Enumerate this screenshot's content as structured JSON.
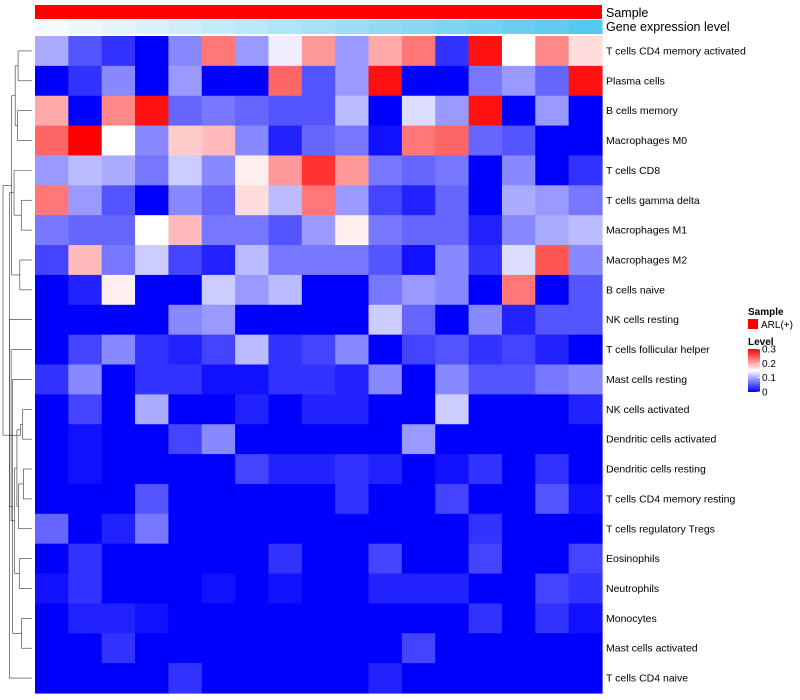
{
  "chart_data": {
    "type": "heatmap",
    "title": "",
    "top_tracks": [
      {
        "label": "Sample",
        "color": "#ff0000"
      },
      {
        "label": "Gene expression level",
        "gradient": [
          "#f7fbfd",
          "#55c8f0"
        ]
      }
    ],
    "rows": [
      "T cells CD4 memory activated",
      "Plasma cells",
      "B cells memory",
      "Macrophages M0",
      "T cells CD8",
      "T cells gamma delta",
      "Macrophages M1",
      "Macrophages M2",
      "B cells naive",
      "NK cells resting",
      "T cells follicular helper",
      "Mast cells resting",
      "NK cells activated",
      "Dendritic cells activated",
      "Dendritic cells resting",
      "T cells CD4 memory resting",
      "T cells regulatory  Tregs",
      "Eosinophils",
      "Neutrophils",
      "Monocytes",
      "Mast cells activated",
      "T cells CD4 naive"
    ],
    "n_samples": 17,
    "values": [
      [
        0.1,
        0.05,
        0.03,
        0.0,
        0.08,
        0.23,
        0.09,
        0.14,
        0.21,
        0.09,
        0.2,
        0.23,
        0.03,
        0.29,
        0.15,
        0.22,
        0.17
      ],
      [
        0.0,
        0.03,
        0.08,
        0.0,
        0.09,
        0.0,
        0.0,
        0.24,
        0.05,
        0.09,
        0.29,
        0.0,
        0.0,
        0.07,
        0.09,
        0.06,
        0.29
      ],
      [
        0.2,
        0.0,
        0.22,
        0.29,
        0.06,
        0.07,
        0.06,
        0.05,
        0.05,
        0.11,
        0.0,
        0.13,
        0.09,
        0.29,
        0.0,
        0.09,
        0.0
      ],
      [
        0.24,
        0.3,
        0.15,
        0.08,
        0.18,
        0.19,
        0.08,
        0.02,
        0.06,
        0.07,
        0.01,
        0.23,
        0.24,
        0.06,
        0.05,
        0.0,
        0.0
      ],
      [
        0.09,
        0.11,
        0.1,
        0.07,
        0.12,
        0.08,
        0.16,
        0.21,
        0.27,
        0.21,
        0.07,
        0.06,
        0.07,
        0.0,
        0.08,
        0.0,
        0.03
      ],
      [
        0.23,
        0.09,
        0.05,
        0.0,
        0.08,
        0.06,
        0.17,
        0.11,
        0.23,
        0.09,
        0.04,
        0.02,
        0.06,
        0.0,
        0.1,
        0.09,
        0.07
      ],
      [
        0.07,
        0.06,
        0.06,
        0.15,
        0.19,
        0.07,
        0.07,
        0.05,
        0.09,
        0.16,
        0.07,
        0.06,
        0.06,
        0.02,
        0.08,
        0.1,
        0.11
      ],
      [
        0.04,
        0.19,
        0.07,
        0.12,
        0.04,
        0.02,
        0.11,
        0.07,
        0.07,
        0.07,
        0.05,
        0.01,
        0.08,
        0.03,
        0.13,
        0.25,
        0.08
      ],
      [
        0.0,
        0.02,
        0.16,
        0.0,
        0.0,
        0.12,
        0.09,
        0.11,
        0.0,
        0.0,
        0.07,
        0.09,
        0.08,
        0.0,
        0.23,
        0.0,
        0.05
      ],
      [
        0.0,
        0.0,
        0.0,
        0.0,
        0.08,
        0.09,
        0.0,
        0.0,
        0.0,
        0.0,
        0.12,
        0.06,
        0.0,
        0.08,
        0.02,
        0.05,
        0.05
      ],
      [
        0.0,
        0.04,
        0.08,
        0.03,
        0.02,
        0.04,
        0.11,
        0.03,
        0.04,
        0.08,
        0.0,
        0.04,
        0.05,
        0.03,
        0.04,
        0.02,
        0.0
      ],
      [
        0.03,
        0.08,
        0.0,
        0.03,
        0.03,
        0.01,
        0.01,
        0.03,
        0.03,
        0.02,
        0.08,
        0.0,
        0.08,
        0.05,
        0.05,
        0.07,
        0.08
      ],
      [
        0.0,
        0.04,
        0.0,
        0.1,
        0.0,
        0.0,
        0.02,
        0.0,
        0.02,
        0.02,
        0.0,
        0.0,
        0.12,
        0.0,
        0.0,
        0.0,
        0.02
      ],
      [
        0.0,
        0.01,
        0.0,
        0.0,
        0.04,
        0.08,
        0.0,
        0.0,
        0.0,
        0.0,
        0.0,
        0.09,
        0.0,
        0.0,
        0.0,
        0.0,
        0.0
      ],
      [
        0.0,
        0.01,
        0.0,
        0.0,
        0.0,
        0.0,
        0.04,
        0.02,
        0.02,
        0.03,
        0.02,
        0.0,
        0.01,
        0.03,
        0.0,
        0.03,
        0.0
      ],
      [
        0.0,
        0.0,
        0.0,
        0.05,
        0.0,
        0.0,
        0.0,
        0.0,
        0.0,
        0.03,
        0.0,
        0.0,
        0.04,
        0.0,
        0.0,
        0.05,
        0.01
      ],
      [
        0.06,
        0.0,
        0.02,
        0.07,
        0.0,
        0.0,
        0.0,
        0.0,
        0.0,
        0.0,
        0.0,
        0.0,
        0.0,
        0.03,
        0.0,
        0.0,
        0.0
      ],
      [
        0.0,
        0.03,
        0.0,
        0.0,
        0.0,
        0.0,
        0.0,
        0.03,
        0.0,
        0.0,
        0.04,
        0.0,
        0.0,
        0.04,
        0.0,
        0.0,
        0.04
      ],
      [
        0.01,
        0.03,
        0.0,
        0.0,
        0.0,
        0.01,
        0.0,
        0.01,
        0.0,
        0.0,
        0.02,
        0.02,
        0.02,
        0.0,
        0.0,
        0.04,
        0.03
      ],
      [
        0.0,
        0.02,
        0.02,
        0.01,
        0.0,
        0.0,
        0.0,
        0.0,
        0.0,
        0.0,
        0.0,
        0.0,
        0.0,
        0.03,
        0.0,
        0.03,
        0.01
      ],
      [
        0.0,
        0.0,
        0.03,
        0.0,
        0.0,
        0.0,
        0.0,
        0.0,
        0.0,
        0.0,
        0.0,
        0.04,
        0.0,
        0.0,
        0.0,
        0.0,
        0.0
      ],
      [
        0.0,
        0.0,
        0.0,
        0.0,
        0.03,
        0.0,
        0.0,
        0.0,
        0.0,
        0.0,
        0.02,
        0.0,
        0.0,
        0.0,
        0.0,
        0.0,
        0.0
      ]
    ],
    "color_scale": {
      "min": 0,
      "mid": 0.15,
      "max": 0.3,
      "low_color": "#0000ff",
      "mid_color": "#ffffff",
      "high_color": "#ff0000"
    },
    "legend": {
      "sample_title": "Sample",
      "sample_entry": "ARL(+)",
      "sample_color": "#ff0000",
      "level_title": "Level",
      "level_ticks": [
        {
          "value": 0.3,
          "label": "0.3"
        },
        {
          "value": 0.2,
          "label": "0.2"
        },
        {
          "value": 0.1,
          "label": "0.1"
        },
        {
          "value": 0,
          "label": "0"
        }
      ]
    },
    "row_dendrogram": {
      "merges": [
        [
          0,
          1,
          0.48
        ],
        [
          2,
          3,
          0.5
        ],
        [
          5,
          6,
          0.37
        ],
        [
          7,
          8,
          0.42
        ],
        [
          22,
          23,
          0.58
        ],
        [
          4,
          24,
          0.62
        ],
        [
          25,
          26,
          0.7
        ],
        [
          21,
          27,
          0.78
        ],
        [
          12,
          13,
          0.32
        ],
        [
          14,
          15,
          0.3
        ],
        [
          29,
          30,
          0.4
        ],
        [
          16,
          31,
          0.46
        ],
        [
          17,
          18,
          0.44
        ],
        [
          32,
          33,
          0.52
        ],
        [
          19,
          20,
          0.36
        ],
        [
          34,
          35,
          0.6
        ],
        [
          11,
          36,
          0.67
        ],
        [
          10,
          37,
          0.72
        ],
        [
          9,
          38,
          0.78
        ],
        [
          28,
          39,
          1.0
        ]
      ]
    }
  }
}
